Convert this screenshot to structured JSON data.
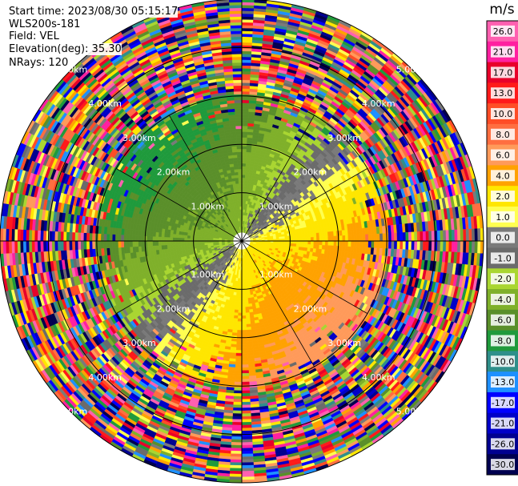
{
  "header": {
    "start_time": "Start time: 2023/08/30 05:15:17",
    "instrument": "WLS200s-181",
    "field": "Field: VEL",
    "elevation": "Elevation(deg): 35.30",
    "nrays": "NRays: 120"
  },
  "colorbar": {
    "unit": "m/s",
    "ticks": [
      "26.0",
      "21.0",
      "17.0",
      "13.0",
      "10.0",
      "8.0",
      "6.0",
      "4.0",
      "2.0",
      "1.0",
      "0.0",
      "-1.0",
      "-2.0",
      "-4.0",
      "-6.0",
      "-8.0",
      "-10.0",
      "-13.0",
      "-17.0",
      "-21.0",
      "-26.0",
      "-30.0"
    ],
    "bins": [
      {
        "range": "26 to 30",
        "color": "#ff60b0"
      },
      {
        "range": "21 to 26",
        "color": "#ff20a0"
      },
      {
        "range": "17 to 21",
        "color": "#e8002a"
      },
      {
        "range": "13 to 17",
        "color": "#ff1a1a"
      },
      {
        "range": "10 to 13",
        "color": "#ff4d26"
      },
      {
        "range": "8 to 10",
        "color": "#ff6e40"
      },
      {
        "range": "6 to 8",
        "color": "#ff9a5a"
      },
      {
        "range": "4 to 6",
        "color": "#ffa200"
      },
      {
        "range": "2 to 4",
        "color": "#ffe600"
      },
      {
        "range": "1 to 2",
        "color": "#ffff50"
      },
      {
        "range": "0 to 1",
        "color": "#7a7a7a"
      },
      {
        "range": "-1 to 0",
        "color": "#6b6b6b"
      },
      {
        "range": "-2 to -1",
        "color": "#a9d631"
      },
      {
        "range": "-4 to -2",
        "color": "#7fb02a"
      },
      {
        "range": "-6 to -4",
        "color": "#5a8f2a"
      },
      {
        "range": "-8 to -6",
        "color": "#1f9a3c"
      },
      {
        "range": "-10 to -8",
        "color": "#2f8f8a"
      },
      {
        "range": "-13 to -10",
        "color": "#1e90ff"
      },
      {
        "range": "-17 to -13",
        "color": "#0000ff"
      },
      {
        "range": "-21 to -17",
        "color": "#0000c8"
      },
      {
        "range": "-26 to -21",
        "color": "#000090"
      },
      {
        "range": "-30 to -26",
        "color": "#000050"
      }
    ]
  },
  "range_rings": [
    {
      "label": "1.00km",
      "km": 1
    },
    {
      "label": "2.00km",
      "km": 2
    },
    {
      "label": "3.00km",
      "km": 3
    },
    {
      "label": "4.00km",
      "km": 4
    },
    {
      "label": "5.00km",
      "km": 5
    }
  ],
  "scan": {
    "max_range_km": 5.0,
    "rays": 120,
    "colors": {
      "background": "#ffffff",
      "ring": "#000000",
      "label": "#ffffff"
    }
  }
}
